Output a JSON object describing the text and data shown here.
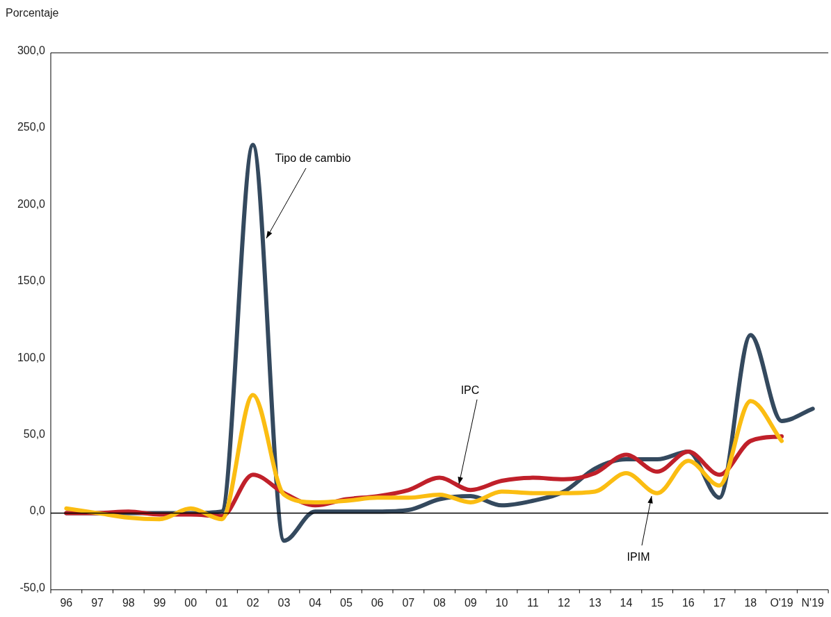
{
  "chart_data": {
    "type": "line",
    "ylabel": "Porcentaje",
    "categories": [
      "96",
      "97",
      "98",
      "99",
      "00",
      "01",
      "02",
      "03",
      "04",
      "05",
      "06",
      "07",
      "08",
      "09",
      "10",
      "11",
      "12",
      "13",
      "14",
      "15",
      "16",
      "17",
      "18",
      "O'19",
      "N'19"
    ],
    "ylim": [
      -50,
      300
    ],
    "yticks": [
      {
        "value": -50,
        "label": "-50,0"
      },
      {
        "value": 0,
        "label": "0,0"
      },
      {
        "value": 50,
        "label": "50,0"
      },
      {
        "value": 100,
        "label": "100,0"
      },
      {
        "value": 150,
        "label": "150,0"
      },
      {
        "value": 200,
        "label": "200,0"
      },
      {
        "value": 250,
        "label": "250,0"
      },
      {
        "value": 300,
        "label": "300,0"
      }
    ],
    "legend": false,
    "ref_lines": [
      {
        "axis": "y",
        "value": 0,
        "color": "#000000"
      }
    ],
    "series": [
      {
        "name": "Tipo de cambio",
        "color": "#34495e",
        "values": [
          0,
          0,
          0,
          0,
          0,
          1,
          240,
          -18,
          1,
          1,
          1,
          2,
          9,
          11,
          5,
          8,
          14,
          29,
          35,
          35,
          40,
          10,
          116,
          60,
          68
        ]
      },
      {
        "name": "IPC",
        "color": "#c0202a",
        "values": [
          0,
          0,
          1,
          -1,
          -1,
          -2,
          25,
          13,
          5,
          9,
          11,
          15,
          23,
          15,
          21,
          23,
          22,
          26,
          38,
          27,
          40,
          25,
          47,
          50,
          null
        ]
      },
      {
        "name": "IPIM",
        "color": "#fbbd12",
        "values": [
          3,
          0,
          -3,
          -4,
          3,
          -4,
          77,
          12,
          7,
          8,
          10,
          10,
          12,
          7,
          14,
          13,
          13,
          14,
          26,
          13,
          34,
          18,
          73,
          47,
          null
        ]
      }
    ]
  }
}
